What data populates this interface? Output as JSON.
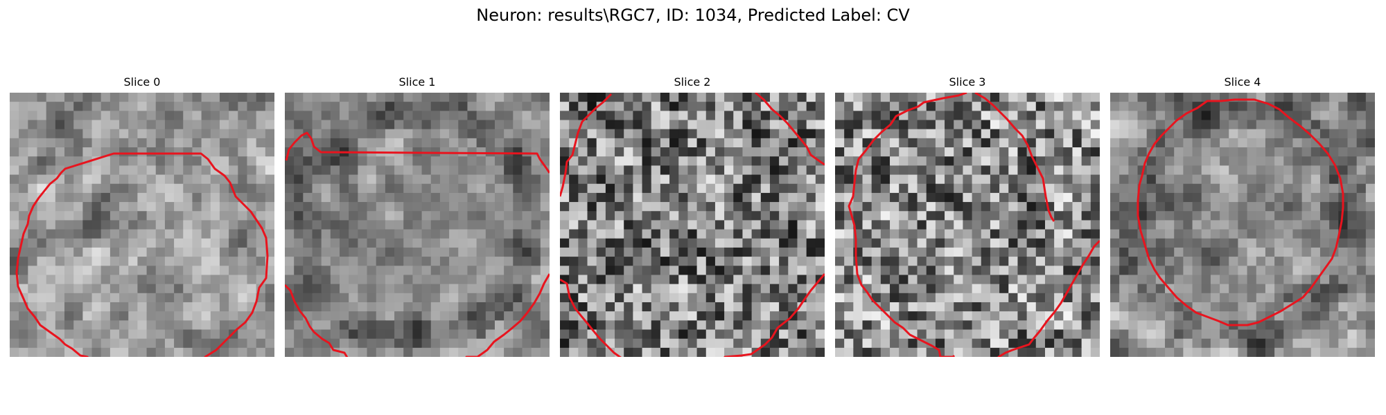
{
  "figure": {
    "title": "Neuron: results\\RGC7, ID: 1034, Predicted Label: CV",
    "contour_color": "#e8141e"
  },
  "panels": [
    {
      "title": "Slice 0"
    },
    {
      "title": "Slice 1"
    },
    {
      "title": "Slice 2"
    },
    {
      "title": "Slice 3"
    },
    {
      "title": "Slice 4"
    }
  ]
}
